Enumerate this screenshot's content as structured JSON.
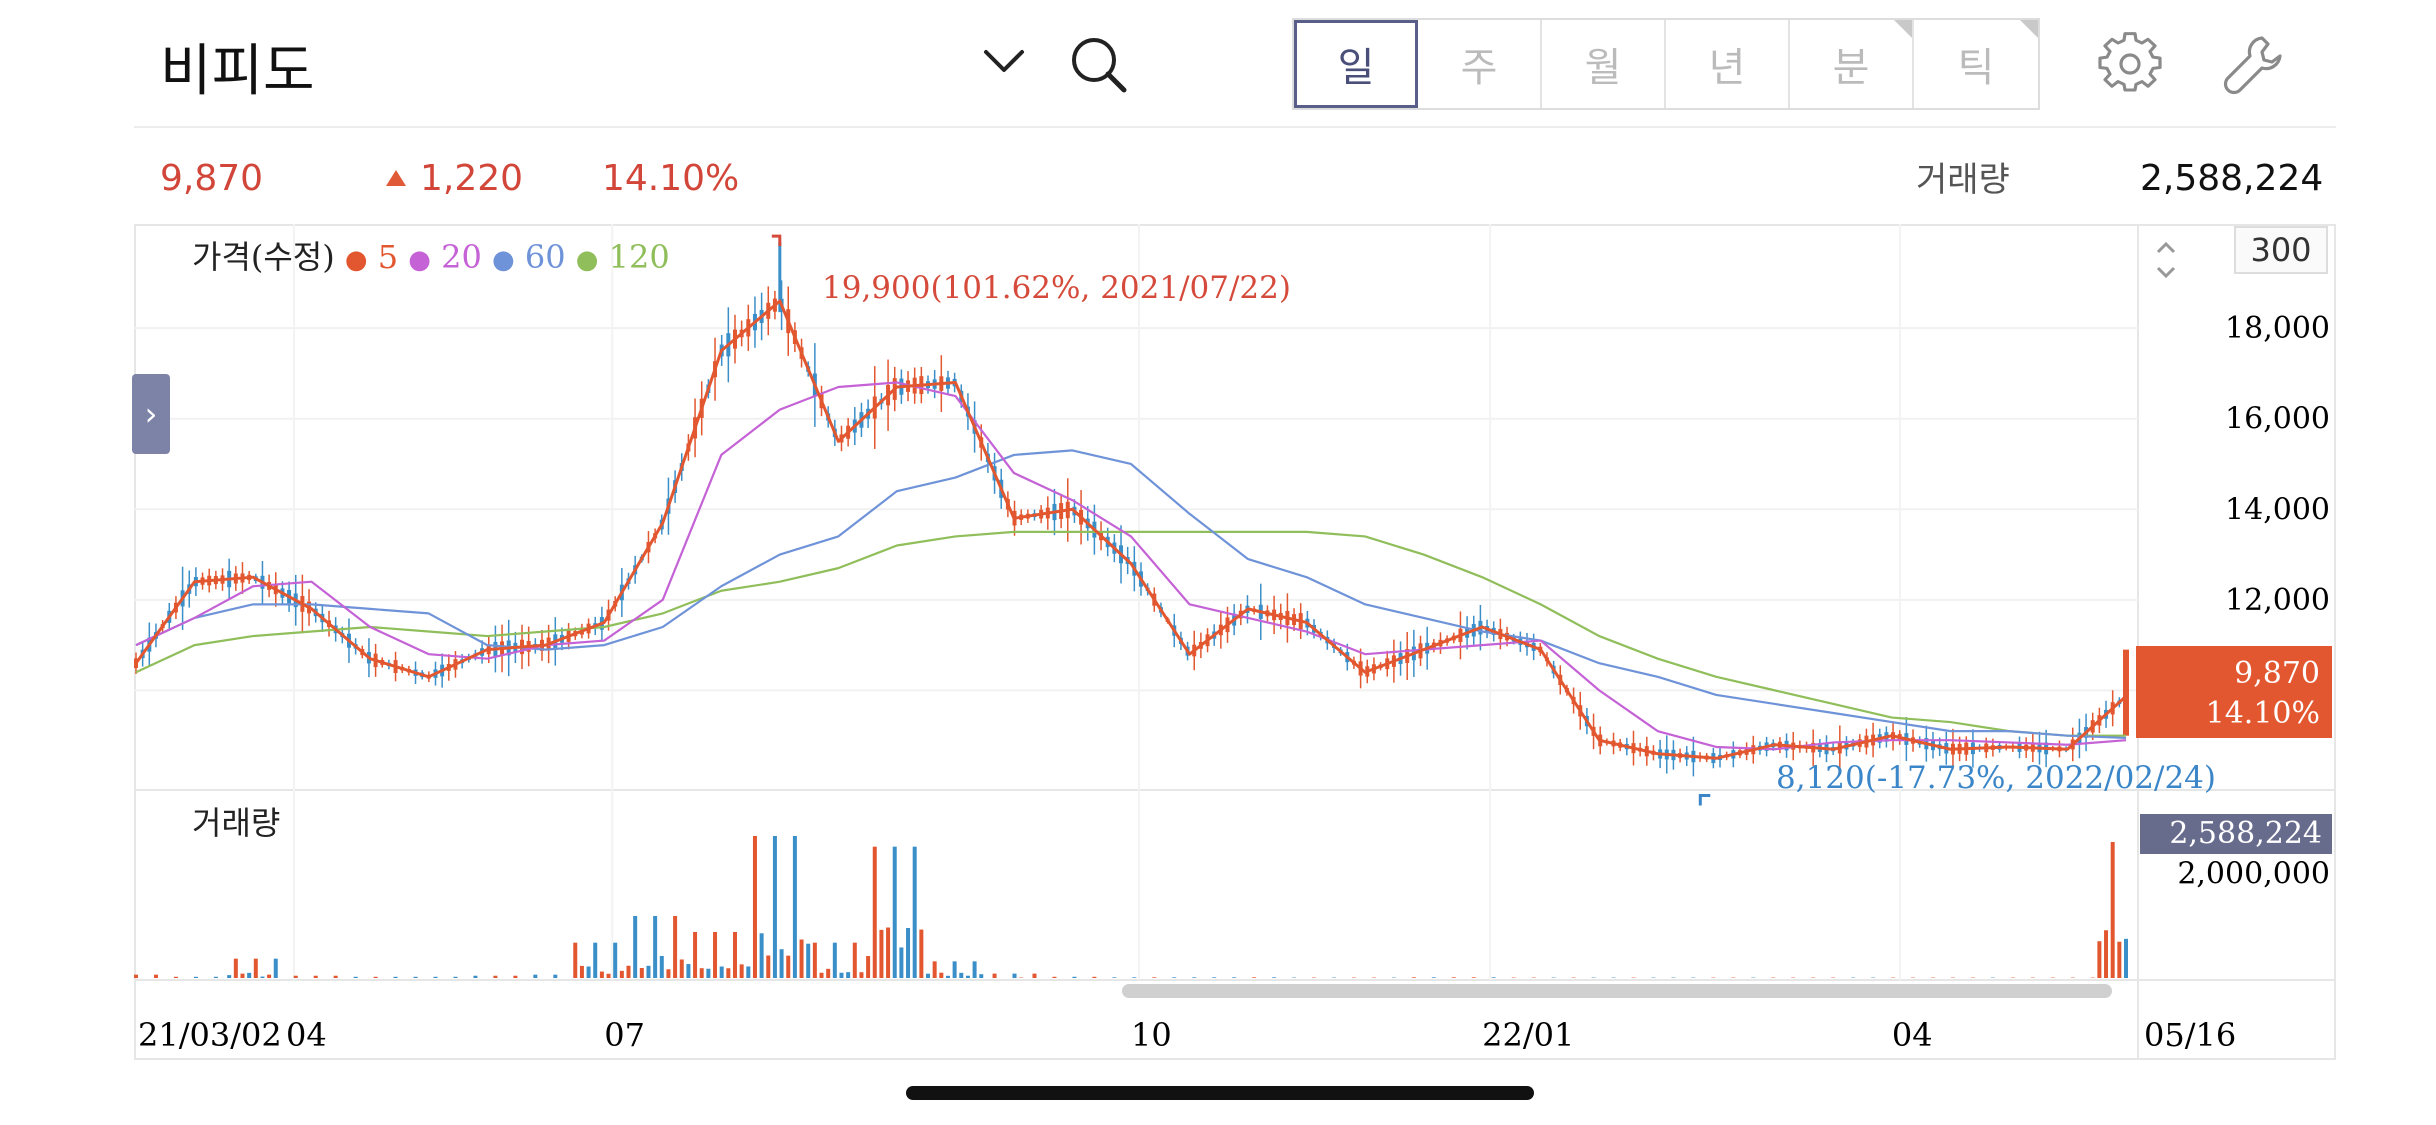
{
  "header": {
    "title": "비피도",
    "tabs": [
      {
        "label": "일",
        "active": true
      },
      {
        "label": "주",
        "active": false
      },
      {
        "label": "월",
        "active": false
      },
      {
        "label": "년",
        "active": false
      },
      {
        "label": "분",
        "active": false
      },
      {
        "label": "틱",
        "active": false
      }
    ],
    "icons": [
      "chevron-down-icon",
      "search-icon",
      "gear-icon",
      "wrench-icon"
    ]
  },
  "summary": {
    "price": "9,870",
    "change": "1,220",
    "change_pct": "14.10%",
    "volume_label": "거래량",
    "volume": "2,588,224"
  },
  "legend": {
    "title": "가격(수정)",
    "ma": [
      {
        "period": "5",
        "color": "#e2572f"
      },
      {
        "period": "20",
        "color": "#c462d6"
      },
      {
        "period": "60",
        "color": "#6f93d8"
      },
      {
        "period": "120",
        "color": "#8fbe5a"
      }
    ]
  },
  "period_setting": "300",
  "volume_panel": {
    "title": "거래량",
    "axis_label": "2,000,000",
    "current": "2,588,224"
  },
  "price_axis": [
    "18,000",
    "16,000",
    "14,000",
    "12,000"
  ],
  "x_axis": [
    "21/03/02",
    "04",
    "07",
    "10",
    "22/01",
    "04",
    "05/16"
  ],
  "annotations": {
    "high": "19,900(101.62%, 2021/07/22)",
    "low": "8,120(-17.73%, 2022/02/24)"
  },
  "price_tag": {
    "price": "9,870",
    "pct": "14.10%"
  },
  "colors": {
    "up": "#e2572f",
    "down": "#3b8fc8",
    "accent": "#5a5f8a"
  },
  "chart_data": {
    "type": "line",
    "title": "가격(수정)",
    "y_range": [
      7800,
      20300
    ],
    "x": [
      "2021-03-02",
      "2021-03-15",
      "2021-04-01",
      "2021-04-15",
      "2021-05-01",
      "2021-05-15",
      "2021-06-01",
      "2021-06-15",
      "2021-06-25",
      "2021-07-05",
      "2021-07-15",
      "2021-07-22",
      "2021-08-01",
      "2021-08-15",
      "2021-08-25",
      "2021-09-05",
      "2021-09-20",
      "2021-10-01",
      "2021-10-15",
      "2021-11-01",
      "2021-11-15",
      "2021-12-01",
      "2021-12-15",
      "2022-01-03",
      "2022-01-15",
      "2022-02-01",
      "2022-02-15",
      "2022-02-24",
      "2022-03-10",
      "2022-03-25",
      "2022-04-05",
      "2022-04-20",
      "2022-05-01",
      "2022-05-13",
      "2022-05-16"
    ],
    "series": [
      {
        "name": "5",
        "values": [
          10600,
          12400,
          12500,
          11800,
          10700,
          10300,
          10900,
          11000,
          11500,
          13700,
          17500,
          18600,
          15500,
          16700,
          16800,
          13800,
          14000,
          12800,
          10800,
          11800,
          11500,
          10400,
          10900,
          11400,
          10900,
          8900,
          8600,
          8500,
          8800,
          8700,
          9000,
          8700,
          8750,
          8700,
          9870
        ]
      },
      {
        "name": "20",
        "values": [
          11000,
          11600,
          12300,
          12400,
          11400,
          10800,
          10700,
          11000,
          11100,
          12000,
          15200,
          16200,
          16700,
          16800,
          16500,
          14800,
          14200,
          13400,
          11900,
          11600,
          11300,
          10800,
          10900,
          11000,
          11100,
          10000,
          9100,
          8750,
          8700,
          8850,
          8900,
          8900,
          8850,
          8800,
          8900
        ]
      },
      {
        "name": "60",
        "values": [
          11000,
          11600,
          11900,
          11900,
          11800,
          11700,
          11000,
          10900,
          11000,
          11400,
          12300,
          13000,
          13400,
          14400,
          14700,
          15200,
          15300,
          15000,
          13900,
          12900,
          12500,
          11900,
          11600,
          11300,
          11100,
          10600,
          10300,
          9900,
          9700,
          9500,
          9300,
          9100,
          9100,
          9000,
          8950
        ]
      },
      {
        "name": "120",
        "values": [
          10400,
          11000,
          11200,
          11300,
          11400,
          11300,
          11200,
          11300,
          11400,
          11700,
          12200,
          12400,
          12700,
          13200,
          13400,
          13500,
          13500,
          13500,
          13500,
          13500,
          13500,
          13400,
          13000,
          12500,
          11900,
          11200,
          10700,
          10300,
          10000,
          9700,
          9400,
          9300,
          9100,
          9000,
          9000
        ]
      }
    ],
    "volume": {
      "ylabel": "거래량",
      "values": [
        100000,
        60000,
        400000,
        80000,
        60000,
        60000,
        80000,
        100000,
        700000,
        1200000,
        900000,
        2700000,
        700000,
        2500000,
        350000,
        120000,
        60000,
        50000,
        50000,
        50000,
        45000,
        45000,
        50000,
        50000,
        45000,
        45000,
        45000,
        45000,
        45000,
        45000,
        45000,
        45000,
        45000,
        45000,
        2588224
      ],
      "ylim": [
        0,
        3000000
      ]
    },
    "high": {
      "value": 19900,
      "pct": "101.62%",
      "date": "2021/07/22"
    },
    "low": {
      "value": 8120,
      "pct": "-17.73%",
      "date": "2022/02/24"
    }
  }
}
